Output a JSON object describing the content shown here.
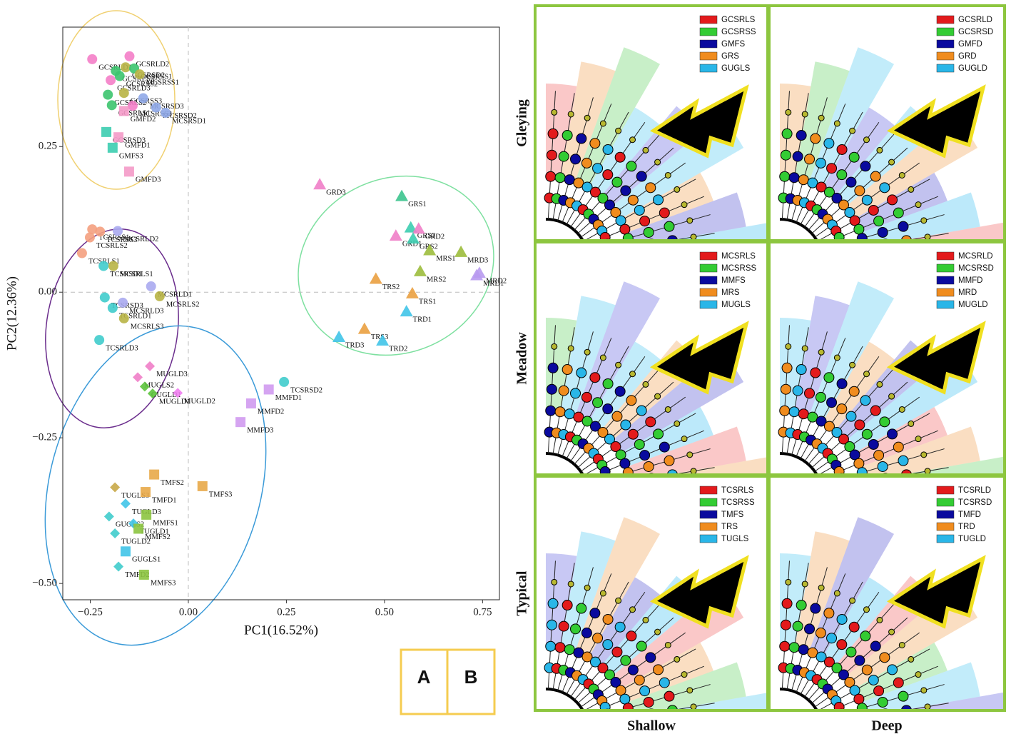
{
  "chart_data": {
    "type": "scatter",
    "xlabel": "PC1(16.52%)",
    "ylabel": "PC2(12.36%)",
    "xlim": [
      -0.32,
      0.793
    ],
    "ylim": [
      -0.528,
      0.455
    ],
    "xticks": [
      {
        "value": -0.25,
        "label": "−0.25"
      },
      {
        "value": 0,
        "label": "0.00"
      },
      {
        "value": 0.25,
        "label": "0.25"
      },
      {
        "value": 0.5,
        "label": "0.50"
      },
      {
        "value": 0.75,
        "label": "0.75"
      }
    ],
    "yticks": [
      {
        "value": -0.5,
        "label": "−0.50"
      },
      {
        "value": -0.25,
        "label": "−0.25"
      },
      {
        "value": 0,
        "label": "0.00"
      },
      {
        "value": 0.25,
        "label": "0.25"
      }
    ],
    "labels": [
      "GCSRLD1",
      "GCSRLS3",
      "GCSRSD2",
      "GCSRLD2",
      "GCSRSS1",
      "GCSRLD3",
      "GCSRSS2",
      "MCSRSS1",
      "GCSRLS2",
      "GCSRSS3",
      "MCSRSD3",
      "GCSRLS1",
      "MCSRSS3",
      "MCSRSD2",
      "MCSRSD1",
      "GMFD2",
      "GCSRSD3",
      "GMFD1",
      "GMFS3",
      "GMFD3",
      "GRD3",
      "GRS1",
      "GRS3",
      "GRD2",
      "GRD1",
      "GRS2",
      "MRS1",
      "MRD3",
      "MRS2",
      "MRD2",
      "MRD1",
      "TRS2",
      "TRS1",
      "TRD1",
      "TRS3",
      "TRD3",
      "TRD2",
      "TCSRSS1",
      "TCSRSS3",
      "MCSRLD2",
      "TCSRLS2",
      "TCSRLS1",
      "MCSRLS1",
      "TCSRSD1",
      "MCSRLD1",
      "MCSRLS2",
      "TCSRSD3",
      "MCSRLD3",
      "TCSRLD1",
      "MCSRLS3",
      "TCSRLD3",
      "MUGLD3",
      "MUGLS2",
      "GUGLD1",
      "MUGLD1",
      "MUGLD2",
      "TCSRSD2",
      "MMFD1",
      "MMFD2",
      "MMFD3",
      "TMFS2",
      "TMFS3",
      "TUGLS3",
      "TMFD1",
      "TUGLD3",
      "MMFS1",
      "GUGLS2",
      "TUGLD1",
      "MMFS2",
      "TUGLD2",
      "GUGLS1",
      "TMFD2",
      "MMFS3"
    ],
    "x": [
      -0.245,
      -0.185,
      -0.16,
      -0.15,
      -0.138,
      -0.198,
      -0.175,
      -0.124,
      -0.205,
      -0.164,
      -0.115,
      -0.195,
      -0.142,
      -0.082,
      -0.058,
      -0.164,
      -0.209,
      -0.178,
      -0.193,
      -0.151,
      0.335,
      0.544,
      0.567,
      0.587,
      0.529,
      0.573,
      0.615,
      0.695,
      0.591,
      0.742,
      0.735,
      0.478,
      0.571,
      0.556,
      0.449,
      0.384,
      0.495,
      -0.245,
      -0.225,
      -0.18,
      -0.251,
      -0.271,
      -0.191,
      -0.216,
      -0.095,
      -0.073,
      -0.213,
      -0.167,
      -0.193,
      -0.164,
      -0.227,
      -0.098,
      -0.129,
      -0.111,
      -0.091,
      -0.027,
      0.244,
      0.205,
      0.16,
      0.133,
      -0.087,
      0.036,
      -0.187,
      -0.109,
      -0.16,
      -0.107,
      -0.202,
      -0.14,
      -0.127,
      -0.187,
      -0.16,
      -0.178,
      -0.113
    ],
    "values": [
      0.4,
      0.38,
      0.386,
      0.405,
      0.384,
      0.364,
      0.371,
      0.374,
      0.339,
      0.342,
      0.333,
      0.321,
      0.32,
      0.317,
      0.308,
      0.311,
      0.275,
      0.266,
      0.248,
      0.207,
      0.185,
      0.165,
      0.111,
      0.109,
      0.097,
      0.092,
      0.072,
      0.069,
      0.036,
      0.033,
      0.029,
      0.023,
      -0.002,
      -0.033,
      -0.063,
      -0.077,
      -0.083,
      0.108,
      0.104,
      0.105,
      0.094,
      0.067,
      0.045,
      0.045,
      0.01,
      -0.007,
      -0.009,
      -0.018,
      -0.027,
      -0.045,
      -0.082,
      -0.127,
      -0.146,
      -0.162,
      -0.174,
      -0.173,
      -0.154,
      -0.167,
      -0.191,
      -0.223,
      -0.313,
      -0.333,
      -0.335,
      -0.343,
      -0.363,
      -0.382,
      -0.385,
      -0.397,
      -0.406,
      -0.414,
      -0.445,
      -0.471,
      -0.485
    ],
    "colors": [
      "#f47ec8",
      "#3cc46e",
      "#b8b445",
      "#f47ec8",
      "#3cc46e",
      "#f47ec8",
      "#3cc46e",
      "#b8b445",
      "#3cc46e",
      "#b8b445",
      "#8fa8e8",
      "#3cc46e",
      "#f47ec8",
      "#8fa8e8",
      "#8fa8e8",
      "#f49ac8",
      "#3ccdb0",
      "#f49ac8",
      "#3ccdb0",
      "#f49ac8",
      "#f07ec8",
      "#3cc48e",
      "#3ccdb0",
      "#f07ec8",
      "#f07ec8",
      "#3ccdb0",
      "#9cbc3c",
      "#9cbc3c",
      "#9cbc3c",
      "#b89af0",
      "#b89af0",
      "#eaa040",
      "#eaa040",
      "#40c4e8",
      "#eaa040",
      "#40c4e8",
      "#40c4e8",
      "#f4a080",
      "#f4a080",
      "#aaaaf0",
      "#f4a080",
      "#f4a080",
      "#b8b445",
      "#40cccc",
      "#aaaaf0",
      "#b8b445",
      "#40cccc",
      "#aaaaf0",
      "#40cccc",
      "#b8b445",
      "#40cccc",
      "#f07ec8",
      "#f07ec8",
      "#5cc43c",
      "#5cc43c",
      "#f07ef0",
      "#40cccc",
      "#d09af0",
      "#d09af0",
      "#d09af0",
      "#e8a848",
      "#e8a848",
      "#c8a848",
      "#e8a848",
      "#40c4e8",
      "#8cc440",
      "#40cccc",
      "#40c4e8",
      "#8cc440",
      "#40cccc",
      "#40c4e8",
      "#40cccc",
      "#8cc440"
    ],
    "shapes": [
      "circle",
      "circle",
      "circle",
      "circle",
      "circle",
      "circle",
      "circle",
      "circle",
      "circle",
      "circle",
      "circle",
      "circle",
      "circle",
      "circle",
      "circle",
      "square",
      "square",
      "square",
      "square",
      "square",
      "triangle",
      "triangle",
      "triangle",
      "triangle",
      "triangle",
      "triangle",
      "triangle",
      "triangle",
      "triangle",
      "triangle",
      "triangle",
      "triangle",
      "triangle",
      "triangle",
      "triangle",
      "triangle",
      "triangle",
      "circle",
      "circle",
      "circle",
      "circle",
      "circle",
      "circle",
      "circle",
      "circle",
      "circle",
      "circle",
      "circle",
      "circle",
      "circle",
      "circle",
      "diamond",
      "diamond",
      "diamond",
      "diamond",
      "diamond",
      "circle",
      "square",
      "square",
      "square",
      "square",
      "square",
      "diamond",
      "square",
      "diamond",
      "square",
      "diamond",
      "diamond",
      "square",
      "diamond",
      "square",
      "diamond",
      "square"
    ]
  },
  "panel_labels": {
    "A": "A",
    "B": "B"
  },
  "rows": [
    "Gleying",
    "Meadow",
    "Typical"
  ],
  "columns": [
    "Shallow",
    "Deep"
  ],
  "panels": [
    {
      "legend": [
        "GCSRLS",
        "GCSRSS",
        "GMFS",
        "GRS",
        "GUGLS"
      ]
    },
    {
      "legend": [
        "GCSRLD",
        "GCSRSD",
        "GMFD",
        "GRD",
        "GUGLD"
      ]
    },
    {
      "legend": [
        "MCSRLS",
        "MCSRSS",
        "MMFS",
        "MRS",
        "MUGLS"
      ]
    },
    {
      "legend": [
        "MCSRLD",
        "MCSRSD",
        "MMFD",
        "MRD",
        "MUGLD"
      ]
    },
    {
      "legend": [
        "TCSRLS",
        "TCSRSS",
        "TMFS",
        "TRS",
        "TUGLS"
      ]
    },
    {
      "legend": [
        "TCSRLD",
        "TCSRSD",
        "TMFD",
        "TRD",
        "TUGLD"
      ]
    }
  ],
  "legend_colors": [
    "#e31a1c",
    "#33cc33",
    "#0a0a9e",
    "#f08c1e",
    "#29b6e8"
  ]
}
